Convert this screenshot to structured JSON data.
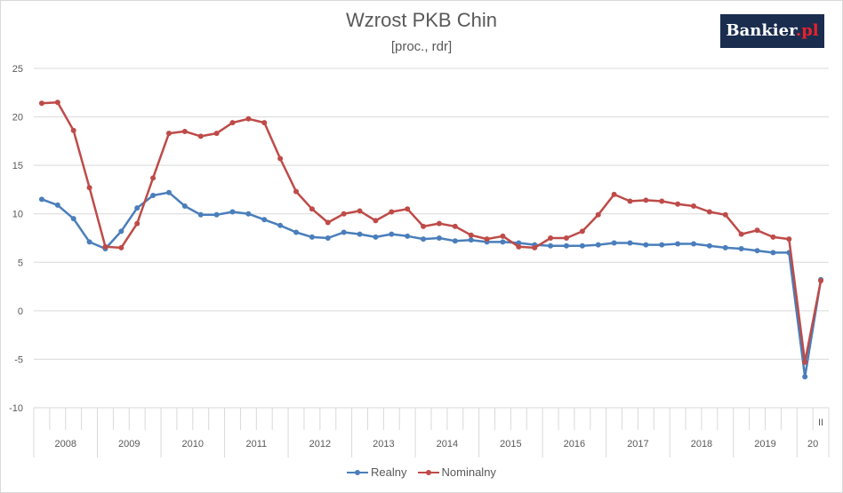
{
  "header": {
    "title": "Wzrost PKB Chin",
    "subtitle": "[proc., rdr]",
    "logo_text": "Bankier",
    "logo_suffix": ".pl"
  },
  "chart_data": {
    "type": "line",
    "title": "Wzrost PKB Chin",
    "subtitle": "[proc., rdr]",
    "ylim": [
      -10,
      25
    ],
    "yticks": [
      25,
      20,
      15,
      10,
      5,
      0,
      -5,
      -10
    ],
    "grid": true,
    "legend_position": "bottom",
    "years": [
      "2008",
      "2009",
      "2010",
      "2011",
      "2012",
      "2013",
      "2014",
      "2015",
      "2016",
      "2017",
      "2018",
      "2019",
      "20"
    ],
    "last_quarter_label": "II",
    "quarters": [
      "2008Q1",
      "2008Q2",
      "2008Q3",
      "2008Q4",
      "2009Q1",
      "2009Q2",
      "2009Q3",
      "2009Q4",
      "2010Q1",
      "2010Q2",
      "2010Q3",
      "2010Q4",
      "2011Q1",
      "2011Q2",
      "2011Q3",
      "2011Q4",
      "2012Q1",
      "2012Q2",
      "2012Q3",
      "2012Q4",
      "2013Q1",
      "2013Q2",
      "2013Q3",
      "2013Q4",
      "2014Q1",
      "2014Q2",
      "2014Q3",
      "2014Q4",
      "2015Q1",
      "2015Q2",
      "2015Q3",
      "2015Q4",
      "2016Q1",
      "2016Q2",
      "2016Q3",
      "2016Q4",
      "2017Q1",
      "2017Q2",
      "2017Q3",
      "2017Q4",
      "2018Q1",
      "2018Q2",
      "2018Q3",
      "2018Q4",
      "2019Q1",
      "2019Q2",
      "2019Q3",
      "2019Q4",
      "2020Q1",
      "2020Q2"
    ],
    "series": [
      {
        "name": "Realny",
        "color": "#4a7ebb",
        "values": [
          11.5,
          10.9,
          9.5,
          7.1,
          6.4,
          8.2,
          10.6,
          11.9,
          12.2,
          10.8,
          9.9,
          9.9,
          10.2,
          10.0,
          9.4,
          8.8,
          8.1,
          7.6,
          7.5,
          8.1,
          7.9,
          7.6,
          7.9,
          7.7,
          7.4,
          7.5,
          7.2,
          7.3,
          7.1,
          7.1,
          7.0,
          6.8,
          6.7,
          6.7,
          6.7,
          6.8,
          7.0,
          7.0,
          6.8,
          6.8,
          6.9,
          6.9,
          6.7,
          6.5,
          6.4,
          6.2,
          6.0,
          6.0,
          -6.8,
          3.2
        ]
      },
      {
        "name": "Nominalny",
        "color": "#be4b48",
        "values": [
          21.4,
          21.5,
          18.6,
          12.7,
          6.6,
          6.5,
          9.0,
          13.7,
          18.3,
          18.5,
          18.0,
          18.3,
          19.4,
          19.8,
          19.4,
          15.7,
          12.3,
          10.5,
          9.1,
          10.0,
          10.3,
          9.3,
          10.2,
          10.5,
          8.7,
          9.0,
          8.7,
          7.8,
          7.4,
          7.7,
          6.6,
          6.5,
          7.5,
          7.5,
          8.2,
          9.9,
          12.0,
          11.3,
          11.4,
          11.3,
          11.0,
          10.8,
          10.2,
          9.9,
          7.9,
          8.3,
          7.6,
          7.4,
          -5.3,
          3.1
        ]
      }
    ]
  }
}
